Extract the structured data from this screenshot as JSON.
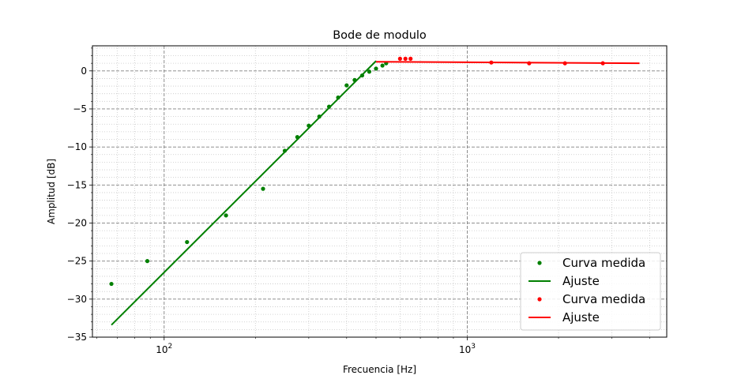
{
  "chart_data": {
    "type": "line",
    "title": "Bode de modulo",
    "xlabel": "Frecuencia [Hz]",
    "ylabel": "Amplitud [dB]",
    "xscale": "log",
    "xlim": [
      58,
      4550
    ],
    "ylim": [
      -35,
      3.3
    ],
    "x_ticks": [
      {
        "value": 100,
        "base": "10",
        "exp": "2"
      },
      {
        "value": 1000,
        "base": "10",
        "exp": "3"
      }
    ],
    "y_ticks": [
      {
        "value": 0,
        "label": "0"
      },
      {
        "value": -5,
        "label": "−5"
      },
      {
        "value": -10,
        "label": "−10"
      },
      {
        "value": -15,
        "label": "−15"
      },
      {
        "value": -20,
        "label": "−20"
      },
      {
        "value": -25,
        "label": "−25"
      },
      {
        "value": -30,
        "label": "−30"
      },
      {
        "value": -35,
        "label": "−35"
      }
    ],
    "grid": "major dashed, minor dotted",
    "legend_position": "bottom-right",
    "series": [
      {
        "name": "Curva medida",
        "style": "points",
        "color": "#008000",
        "x": [
          67,
          88,
          119,
          160,
          212,
          250,
          275,
          300,
          325,
          350,
          375,
          400,
          425,
          450,
          475,
          500,
          525,
          540
        ],
        "y": [
          -28.0,
          -25.0,
          -22.5,
          -19.0,
          -15.5,
          -10.5,
          -8.7,
          -7.2,
          -6.0,
          -4.7,
          -3.5,
          -1.9,
          -1.2,
          -0.6,
          -0.1,
          0.3,
          0.7,
          1.0
        ]
      },
      {
        "name": "Ajuste",
        "style": "line",
        "color": "#008000",
        "x": [
          67,
          500
        ],
        "y": [
          -33.4,
          1.3
        ]
      },
      {
        "name": "Curva medida",
        "style": "points",
        "color": "#ff0000",
        "x": [
          600,
          625,
          650,
          1200,
          1600,
          2100,
          2800
        ],
        "y": [
          1.6,
          1.6,
          1.6,
          1.1,
          1.0,
          1.0,
          1.0
        ]
      },
      {
        "name": "Ajuste",
        "style": "line",
        "color": "#ff0000",
        "x": [
          500,
          3700
        ],
        "y": [
          1.2,
          1.0
        ]
      }
    ]
  }
}
